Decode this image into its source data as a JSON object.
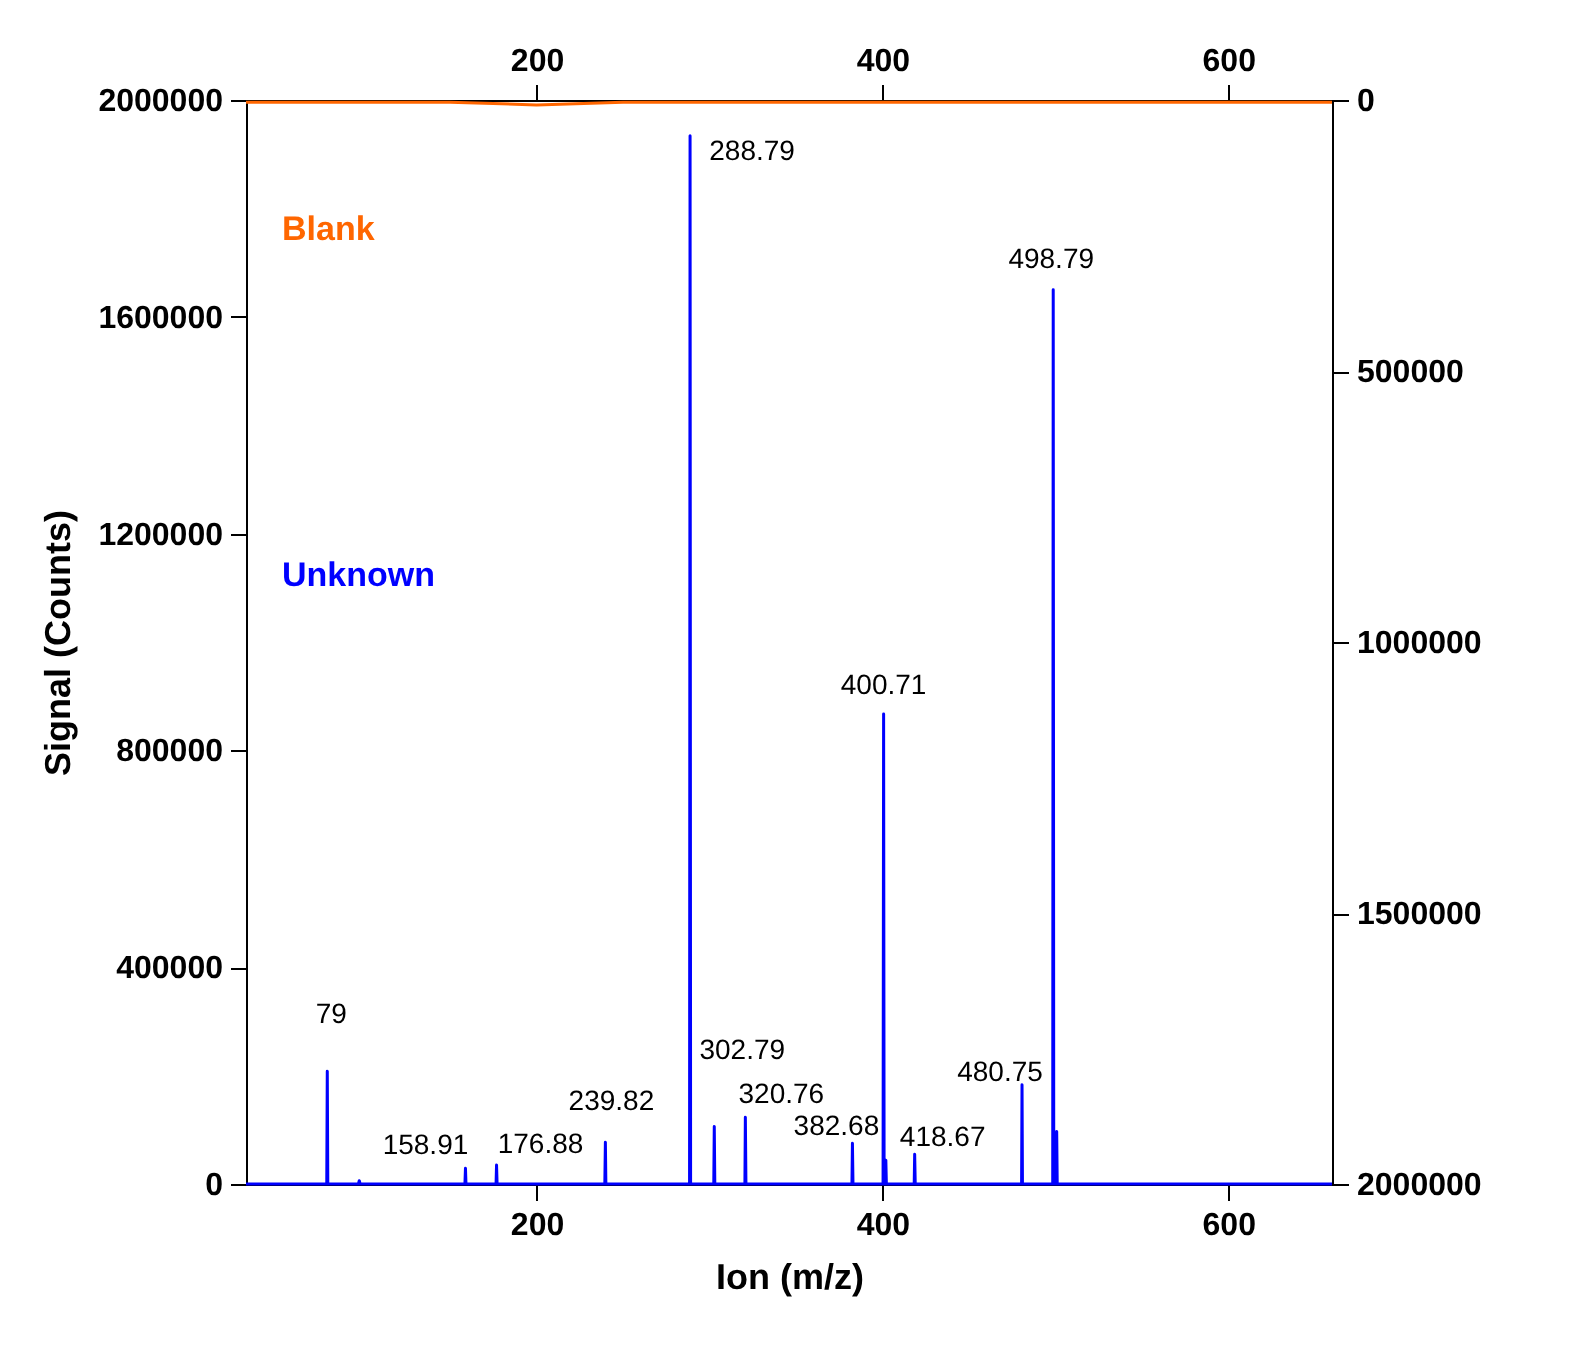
{
  "chart_data": {
    "type": "line",
    "xlabel": "Ion (m/z)",
    "ylabel": "Signal (Counts)",
    "xlim": [
      32,
      660
    ],
    "xticks": [
      200,
      400,
      600
    ],
    "x2lim": [
      32,
      660
    ],
    "x2ticks": [
      200,
      400,
      600
    ],
    "ylim": [
      0,
      2000000
    ],
    "yticks": [
      0,
      400000,
      800000,
      1200000,
      1600000,
      2000000
    ],
    "y2lim": [
      2000000,
      0
    ],
    "y2ticks": [
      0,
      500000,
      1000000,
      1500000,
      2000000
    ],
    "grid": false,
    "series": [
      {
        "name": "Unknown",
        "color": "#0000ff",
        "x": [
          32,
          78.7,
          79,
          79.3,
          97,
          97.5,
          98,
          158.6,
          158.91,
          159.2,
          176.6,
          176.88,
          177.2,
          239.5,
          239.82,
          240.1,
          288.5,
          288.79,
          289.1,
          302.5,
          302.79,
          303.1,
          320.5,
          320.76,
          321.1,
          382.4,
          382.68,
          383,
          400.4,
          400.71,
          401,
          401.7,
          402,
          402.3,
          418.4,
          418.67,
          419,
          480.5,
          480.75,
          481,
          498.5,
          498.79,
          499.1,
          500.5,
          500.8,
          501.1,
          660
        ],
        "values": [
          0,
          0,
          208000,
          0,
          0,
          6000,
          0,
          0,
          29000,
          0,
          0,
          35000,
          0,
          0,
          77000,
          0,
          0,
          1934000,
          0,
          0,
          106000,
          0,
          0,
          123000,
          0,
          0,
          75000,
          0,
          0,
          867000,
          0,
          0,
          44000,
          0,
          0,
          55000,
          0,
          0,
          183000,
          0,
          0,
          1650000,
          0,
          0,
          97000,
          0,
          0
        ]
      },
      {
        "name": "Blank",
        "color": "#ff6600",
        "axis": "y2",
        "x": [
          32,
          150,
          200,
          250,
          300,
          400,
          500,
          660
        ],
        "values": [
          4000,
          4000,
          9000,
          4000,
          4000,
          4000,
          4000,
          4000
        ]
      }
    ],
    "annotations": [
      {
        "text": "79",
        "x": 79,
        "y": 208000
      },
      {
        "text": "158.91",
        "x": 158.91,
        "y": 29000
      },
      {
        "text": "176.88",
        "x": 176.88,
        "y": 35000
      },
      {
        "text": "239.82",
        "x": 239.82,
        "y": 77000
      },
      {
        "text": "288.79",
        "x": 288.79,
        "y": 1934000
      },
      {
        "text": "302.79",
        "x": 302.79,
        "y": 106000
      },
      {
        "text": "320.76",
        "x": 320.76,
        "y": 123000
      },
      {
        "text": "382.68",
        "x": 382.68,
        "y": 75000
      },
      {
        "text": "400.71",
        "x": 400.71,
        "y": 867000
      },
      {
        "text": "418.67",
        "x": 418.67,
        "y": 55000
      },
      {
        "text": "480.75",
        "x": 480.75,
        "y": 183000
      },
      {
        "text": "498.79",
        "x": 498.79,
        "y": 1650000
      }
    ]
  }
}
